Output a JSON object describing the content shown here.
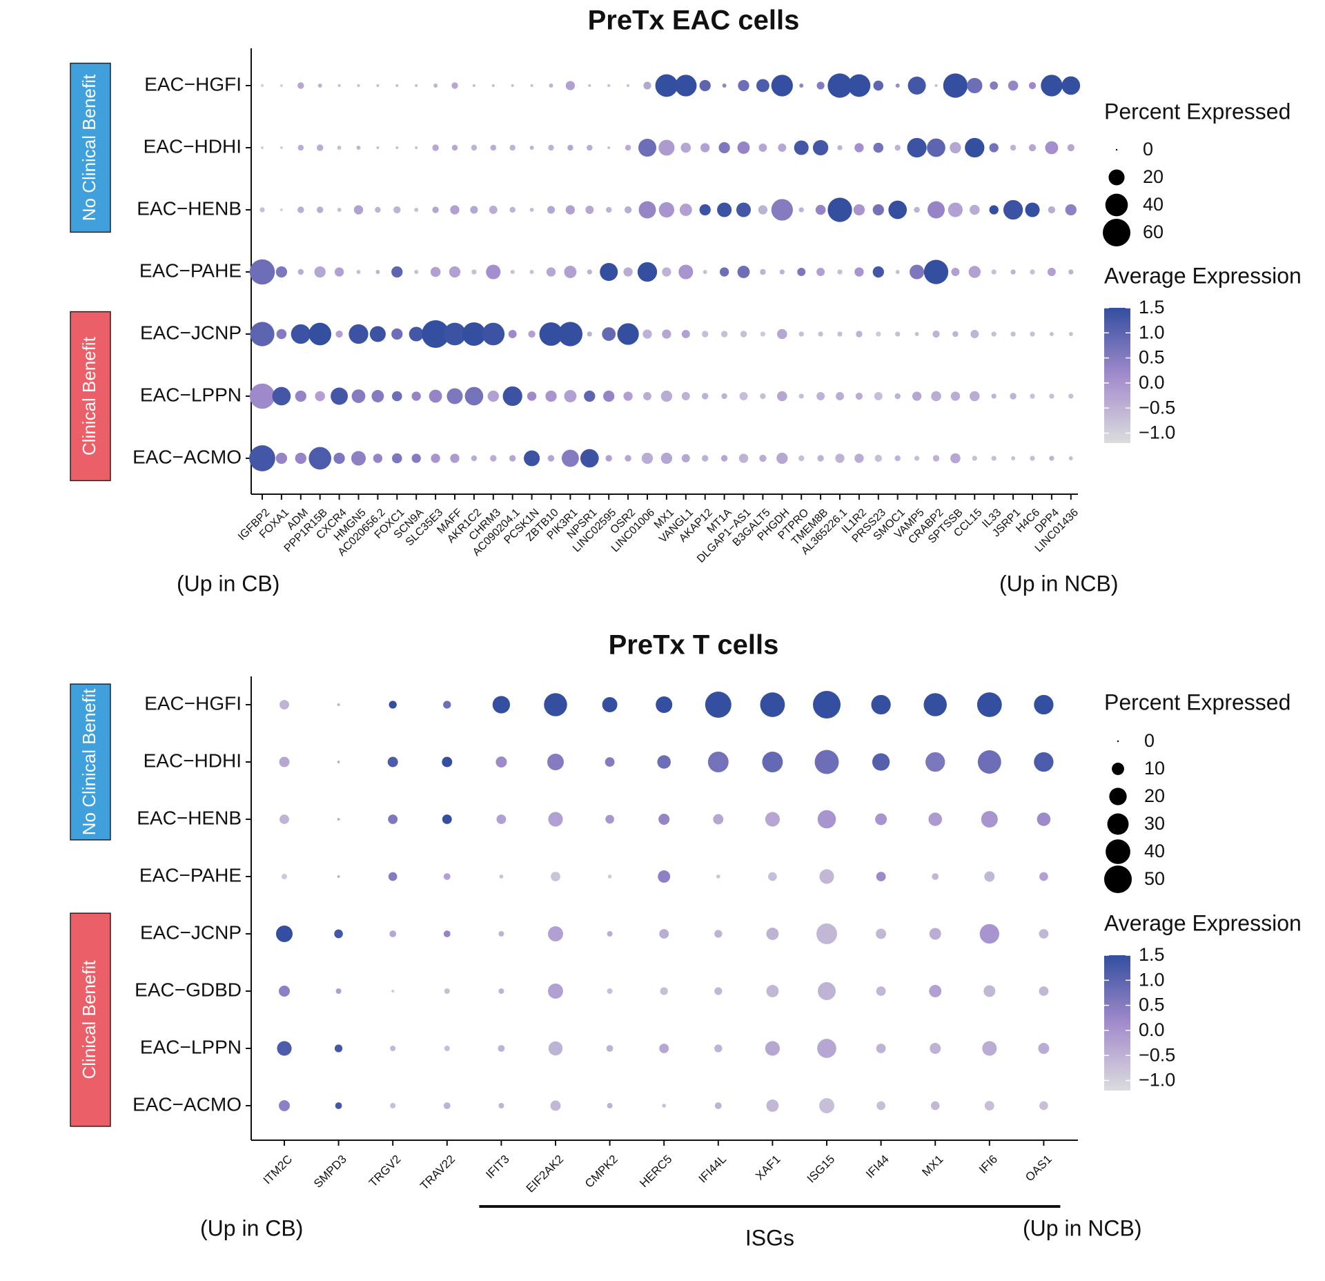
{
  "chart_data": [
    {
      "type": "dotplot",
      "title": "PreTx EAC cells",
      "rows": [
        "EAC−HGFI",
        "EAC−HDHI",
        "EAC−HENB",
        "EAC−PAHE",
        "EAC−JCNP",
        "EAC−LPPN",
        "EAC−ACMO"
      ],
      "columns": [
        "IGFBP2",
        "FOXA1",
        "ADM",
        "PPP1R15B",
        "CXCR4",
        "HMGN5",
        "AC020656.2",
        "FOXC1",
        "SCN9A",
        "SLC35E3",
        "MAFF",
        "AKR1C2",
        "CHRM3",
        "AC090204.1",
        "PCSK1N",
        "ZBTB10",
        "PIK3R1",
        "NPSR1",
        "LINC02595",
        "OSR2",
        "LINC01006",
        "MX1",
        "VANGL1",
        "AKAP12",
        "MT1A",
        "DLGAP1−AS1",
        "B3GALT5",
        "PHGDH",
        "PTPRO",
        "TMEM8B",
        "AL365226.1",
        "IL1R2",
        "PRSS23",
        "SMOC1",
        "VAMP5",
        "CRABP2",
        "SPTSSB",
        "CCL15",
        "IL33",
        "JSRP1",
        "H4C6",
        "DPP4",
        "LINC01436"
      ],
      "groups": [
        {
          "label": "No Clinical Benefit",
          "rows": [
            "EAC−HGFI",
            "EAC−HDHI",
            "EAC−HENB"
          ],
          "color": "#3fa0dc"
        },
        {
          "label": "Clinical Benefit",
          "rows": [
            "EAC−JCNP",
            "EAC−LPPN",
            "EAC−ACMO"
          ],
          "color": "#eb6068"
        }
      ],
      "percent": [
        [
          1,
          1,
          5,
          2,
          1,
          1,
          1,
          1,
          1,
          2,
          5,
          1,
          1,
          1,
          1,
          2,
          10,
          1,
          1,
          1,
          7,
          60,
          55,
          15,
          2,
          15,
          20,
          55,
          2,
          7,
          70,
          60,
          12,
          2,
          38,
          1,
          70,
          28,
          8,
          12,
          6,
          55,
          40
        ],
        [
          1,
          1,
          4,
          5,
          2,
          2,
          1,
          1,
          1,
          5,
          4,
          4,
          4,
          4,
          2,
          4,
          4,
          4,
          1,
          4,
          38,
          30,
          12,
          10,
          15,
          18,
          8,
          8,
          25,
          28,
          3,
          10,
          12,
          4,
          45,
          40,
          15,
          45,
          10,
          4,
          6,
          20,
          6
        ],
        [
          3,
          1,
          5,
          5,
          2,
          10,
          4,
          6,
          2,
          5,
          10,
          7,
          8,
          4,
          2,
          7,
          10,
          8,
          4,
          6,
          35,
          28,
          18,
          15,
          25,
          25,
          10,
          55,
          3,
          12,
          70,
          15,
          15,
          40,
          4,
          35,
          25,
          12,
          10,
          45,
          25,
          6,
          15
        ],
        [
          75,
          15,
          4,
          15,
          10,
          2,
          2,
          15,
          2,
          12,
          15,
          3,
          25,
          2,
          2,
          10,
          18,
          3,
          38,
          10,
          45,
          10,
          25,
          2,
          10,
          18,
          4,
          3,
          8,
          8,
          3,
          10,
          15,
          2,
          25,
          70,
          8,
          17,
          3,
          3,
          3,
          8,
          3
        ],
        [
          70,
          12,
          45,
          60,
          6,
          45,
          30,
          15,
          25,
          90,
          60,
          65,
          60,
          8,
          6,
          65,
          70,
          3,
          22,
          55,
          10,
          10,
          8,
          5,
          5,
          5,
          3,
          12,
          3,
          3,
          3,
          5,
          3,
          3,
          2,
          6,
          4,
          8,
          3,
          3,
          3,
          2,
          2
        ],
        [
          75,
          40,
          15,
          12,
          35,
          22,
          18,
          12,
          10,
          20,
          30,
          40,
          15,
          45,
          10,
          15,
          18,
          15,
          15,
          10,
          8,
          15,
          8,
          5,
          4,
          8,
          4,
          12,
          3,
          8,
          8,
          6,
          8,
          4,
          10,
          12,
          10,
          12,
          3,
          5,
          3,
          3,
          3
        ],
        [
          80,
          15,
          15,
          60,
          15,
          25,
          10,
          12,
          10,
          10,
          10,
          4,
          5,
          5,
          30,
          5,
          35,
          40,
          5,
          5,
          15,
          15,
          8,
          5,
          5,
          10,
          6,
          15,
          4,
          5,
          10,
          10,
          6,
          4,
          3,
          5,
          12,
          3,
          3,
          2,
          3,
          3,
          2
        ]
      ],
      "avg_expression": [
        [
          -1.0,
          -1.0,
          -0.3,
          -0.5,
          -0.7,
          -0.7,
          -0.7,
          -0.7,
          -0.7,
          -0.5,
          -0.3,
          -0.7,
          -0.7,
          -0.7,
          -0.7,
          -0.5,
          -0.2,
          -0.7,
          -0.7,
          -0.7,
          -0.3,
          1.5,
          1.5,
          1.0,
          0.3,
          0.8,
          1.2,
          1.5,
          0.3,
          0.5,
          1.5,
          1.5,
          1.0,
          0.2,
          1.3,
          -0.7,
          1.5,
          0.8,
          0.5,
          0.3,
          0.2,
          1.5,
          1.5
        ],
        [
          -1.0,
          -1.0,
          -0.4,
          -0.4,
          -0.7,
          -0.5,
          -0.7,
          -0.7,
          -0.7,
          -0.3,
          -0.3,
          -0.5,
          -0.4,
          -0.5,
          -0.5,
          -0.5,
          -0.3,
          -0.4,
          -0.7,
          -0.4,
          0.8,
          -0.1,
          -0.3,
          -0.2,
          0.6,
          0.3,
          -0.3,
          -0.3,
          1.3,
          1.3,
          -0.5,
          0.1,
          0.7,
          -0.5,
          1.4,
          1.0,
          -0.3,
          1.5,
          0.7,
          -0.5,
          -0.3,
          0.1,
          -0.3
        ],
        [
          -0.7,
          -1.0,
          -0.4,
          -0.4,
          -0.7,
          -0.2,
          -0.5,
          -0.5,
          -0.7,
          -0.3,
          -0.2,
          -0.3,
          -0.4,
          -0.5,
          -0.7,
          -0.3,
          -0.2,
          -0.3,
          -0.5,
          -0.4,
          0.3,
          0.0,
          -0.2,
          1.4,
          1.4,
          1.3,
          -0.5,
          0.5,
          -0.5,
          0.3,
          1.5,
          0.0,
          0.7,
          1.5,
          -0.5,
          0.3,
          -0.2,
          -0.4,
          1.5,
          1.4,
          1.5,
          -0.4,
          0.4
        ],
        [
          0.8,
          0.6,
          -0.4,
          -0.3,
          -0.2,
          -0.7,
          -0.5,
          1.0,
          -0.7,
          -0.2,
          -0.2,
          -0.7,
          0.1,
          -0.7,
          -0.7,
          -0.3,
          -0.2,
          -0.5,
          1.5,
          -0.4,
          1.5,
          -0.5,
          0.0,
          -0.7,
          0.8,
          0.8,
          -0.5,
          -0.5,
          0.6,
          -0.2,
          -0.7,
          0.0,
          1.3,
          -0.7,
          0.6,
          1.5,
          -0.2,
          -0.2,
          -0.7,
          -0.5,
          -0.7,
          -0.2,
          -0.5
        ],
        [
          1.0,
          0.5,
          1.4,
          1.5,
          -0.2,
          1.4,
          1.4,
          0.8,
          1.3,
          1.5,
          1.4,
          1.5,
          1.4,
          0.2,
          -0.2,
          1.5,
          1.5,
          -0.5,
          0.9,
          1.5,
          -0.5,
          -0.3,
          -0.2,
          -0.7,
          -0.7,
          -0.7,
          -0.9,
          -0.3,
          -0.7,
          -0.7,
          -0.7,
          -0.5,
          -0.9,
          -0.7,
          -0.7,
          -0.5,
          -0.5,
          -0.5,
          -0.7,
          -0.7,
          -0.7,
          -0.7,
          -0.7
        ],
        [
          0.2,
          1.3,
          0.3,
          -0.2,
          1.3,
          0.5,
          0.5,
          0.8,
          0.3,
          0.3,
          0.6,
          0.7,
          -0.2,
          1.4,
          0.2,
          0.0,
          -0.2,
          1.0,
          0.3,
          -0.2,
          -0.4,
          -0.4,
          -0.5,
          -0.5,
          -0.5,
          -0.7,
          -0.7,
          -0.3,
          -0.7,
          -0.5,
          -0.4,
          -0.4,
          -0.7,
          -0.5,
          -0.3,
          -0.4,
          -0.4,
          -0.4,
          -0.5,
          -0.5,
          -0.7,
          -0.7,
          -0.7
        ],
        [
          1.3,
          0.3,
          0.3,
          1.2,
          0.6,
          0.4,
          0.3,
          0.6,
          0.5,
          0.0,
          -0.1,
          -0.4,
          -0.4,
          -0.3,
          1.4,
          -0.3,
          0.5,
          1.4,
          -0.2,
          -0.3,
          -0.4,
          -0.3,
          -0.3,
          -0.5,
          -0.3,
          -0.5,
          -0.4,
          -0.3,
          -0.7,
          -0.5,
          -0.5,
          -0.4,
          -0.7,
          -0.5,
          -0.7,
          -0.5,
          -0.3,
          -0.7,
          -0.7,
          -0.7,
          -0.7,
          -0.5,
          -0.7
        ]
      ],
      "size_legend": {
        "title": "Percent Expressed",
        "values": [
          0,
          20,
          40,
          60
        ]
      },
      "color_legend": {
        "title": "Average Expression",
        "ticks": [
          "1.5",
          "1.0",
          "0.5",
          "0.0",
          "−0.5",
          "−1.0"
        ]
      },
      "annotations": {
        "left": "(Up in CB)",
        "right": "(Up in NCB)"
      }
    },
    {
      "type": "dotplot",
      "title": "PreTx T cells",
      "rows": [
        "EAC−HGFI",
        "EAC−HDHI",
        "EAC−HENB",
        "EAC−PAHE",
        "EAC−JCNP",
        "EAC−GDBD",
        "EAC−LPPN",
        "EAC−ACMO"
      ],
      "columns": [
        "ITM2C",
        "SMPD3",
        "TRGV2",
        "TRAV22",
        "IFIT3",
        "EIF2AK2",
        "CMPK2",
        "HERC5",
        "IFI44L",
        "XAF1",
        "ISG15",
        "IFI44",
        "MX1",
        "IFI6",
        "OAS1"
      ],
      "groups": [
        {
          "label": "No Clinical Benefit",
          "rows": [
            "EAC−HGFI",
            "EAC−HDHI",
            "EAC−HENB"
          ],
          "color": "#3fa0dc"
        },
        {
          "label": "Clinical Benefit",
          "rows": [
            "EAC−JCNP",
            "EAC−GDBD",
            "EAC−LPPN",
            "EAC−ACMO"
          ],
          "color": "#eb6068"
        }
      ],
      "percent": [
        [
          6,
          0.5,
          4,
          4,
          20,
          35,
          15,
          18,
          45,
          40,
          50,
          25,
          35,
          40,
          25
        ],
        [
          7,
          0.5,
          7,
          7,
          8,
          18,
          6,
          12,
          28,
          28,
          38,
          20,
          25,
          36,
          25
        ],
        [
          6,
          0.5,
          6,
          6,
          6,
          14,
          5,
          8,
          7,
          14,
          22,
          9,
          12,
          18,
          12
        ],
        [
          2,
          0.5,
          5,
          3,
          1,
          6,
          1,
          10,
          1,
          5,
          14,
          6,
          3,
          7,
          5
        ],
        [
          18,
          5,
          3,
          3,
          2,
          15,
          2,
          6,
          4,
          10,
          28,
          7,
          9,
          25,
          6
        ],
        [
          8,
          2,
          0.5,
          2,
          2,
          15,
          2,
          4,
          4,
          10,
          21,
          6,
          10,
          9,
          6
        ],
        [
          14,
          4,
          2,
          2,
          3,
          13,
          3,
          6,
          4,
          14,
          24,
          6,
          8,
          14,
          8
        ],
        [
          8,
          3,
          2,
          3,
          2,
          7,
          2,
          1,
          3,
          10,
          15,
          5,
          5,
          6,
          5
        ]
      ],
      "avg_expression": [
        [
          -0.5,
          -0.5,
          1.5,
          0.8,
          1.5,
          1.5,
          1.5,
          1.5,
          1.5,
          1.5,
          1.5,
          1.5,
          1.5,
          1.5,
          1.5
        ],
        [
          -0.3,
          -0.5,
          1.2,
          1.5,
          0.2,
          0.5,
          0.5,
          0.8,
          0.7,
          0.9,
          0.8,
          1.1,
          0.6,
          0.8,
          1.2
        ],
        [
          -0.5,
          -0.5,
          0.6,
          1.5,
          -0.2,
          -0.2,
          0.0,
          0.3,
          -0.3,
          -0.3,
          0.0,
          0.0,
          -0.1,
          0.0,
          0.2
        ],
        [
          -0.9,
          -0.5,
          0.5,
          -0.2,
          -0.7,
          -0.8,
          -0.9,
          0.4,
          -0.8,
          -0.7,
          -0.6,
          0.2,
          -0.6,
          -0.6,
          -0.2
        ],
        [
          1.5,
          1.3,
          -0.3,
          0.3,
          -0.5,
          -0.2,
          -0.4,
          -0.4,
          -0.5,
          -0.5,
          -0.6,
          -0.6,
          -0.4,
          0.0,
          -0.6
        ],
        [
          0.4,
          -0.2,
          -0.9,
          -0.7,
          -0.5,
          -0.2,
          -0.7,
          -0.7,
          -0.6,
          -0.6,
          -0.5,
          -0.6,
          -0.2,
          -0.6,
          -0.6
        ],
        [
          1.2,
          1.3,
          -0.6,
          -0.7,
          -0.5,
          -0.5,
          -0.5,
          -0.3,
          -0.5,
          -0.3,
          -0.3,
          -0.5,
          -0.5,
          -0.4,
          -0.4
        ],
        [
          0.4,
          1.3,
          -0.7,
          -0.5,
          -0.5,
          -0.6,
          -0.5,
          -0.7,
          -0.5,
          -0.6,
          -0.7,
          -0.7,
          -0.6,
          -0.7,
          -0.7
        ]
      ],
      "size_legend": {
        "title": "Percent Expressed",
        "values": [
          0,
          10,
          20,
          30,
          40,
          50
        ]
      },
      "color_legend": {
        "title": "Average Expression",
        "ticks": [
          "1.5",
          "1.0",
          "0.5",
          "0.0",
          "−0.5",
          "−1.0"
        ]
      },
      "annotations": {
        "left": "(Up in CB)",
        "right": "(Up in NCB)",
        "bracket_label": "ISGs",
        "bracket_from": "IFIT3",
        "bracket_to": "OAS1"
      }
    }
  ]
}
